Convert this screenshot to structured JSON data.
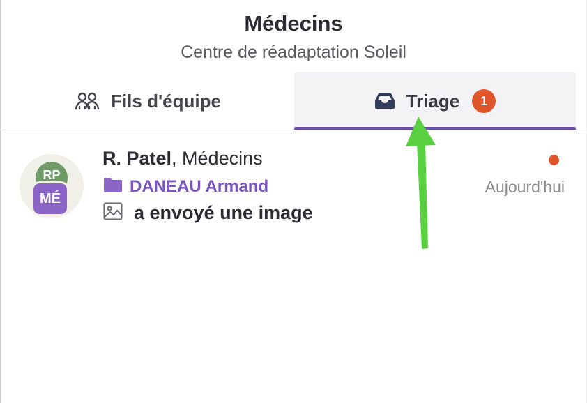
{
  "header": {
    "title": "Médecins",
    "subtitle": "Centre de réadaptation Soleil"
  },
  "tabs": [
    {
      "label": "Fils d'équipe",
      "icon": "team-icon",
      "active": false
    },
    {
      "label": "Triage",
      "icon": "inbox-icon",
      "active": true,
      "badge": "1"
    }
  ],
  "conversation": {
    "avatar_top_initials": "RP",
    "avatar_group_initials": "MÉ",
    "sender": "R. Patel",
    "group_suffix": ", Médecins",
    "folder_icon": "folder-icon",
    "folder_label": "DANEAU Armand",
    "message_icon": "image-icon",
    "message": "a envoyé une image",
    "timestamp": "Aujourd'hui",
    "unread": true
  },
  "annotation": {
    "type": "arrow",
    "color": "#58d03f",
    "points_to": "tab-triage"
  },
  "colors": {
    "accent": "#6c4fb2",
    "badge": "#e0562a",
    "folder": "#7a55c2",
    "avatar_green": "#6f9c66",
    "avatar_purple": "#8b66c7"
  }
}
